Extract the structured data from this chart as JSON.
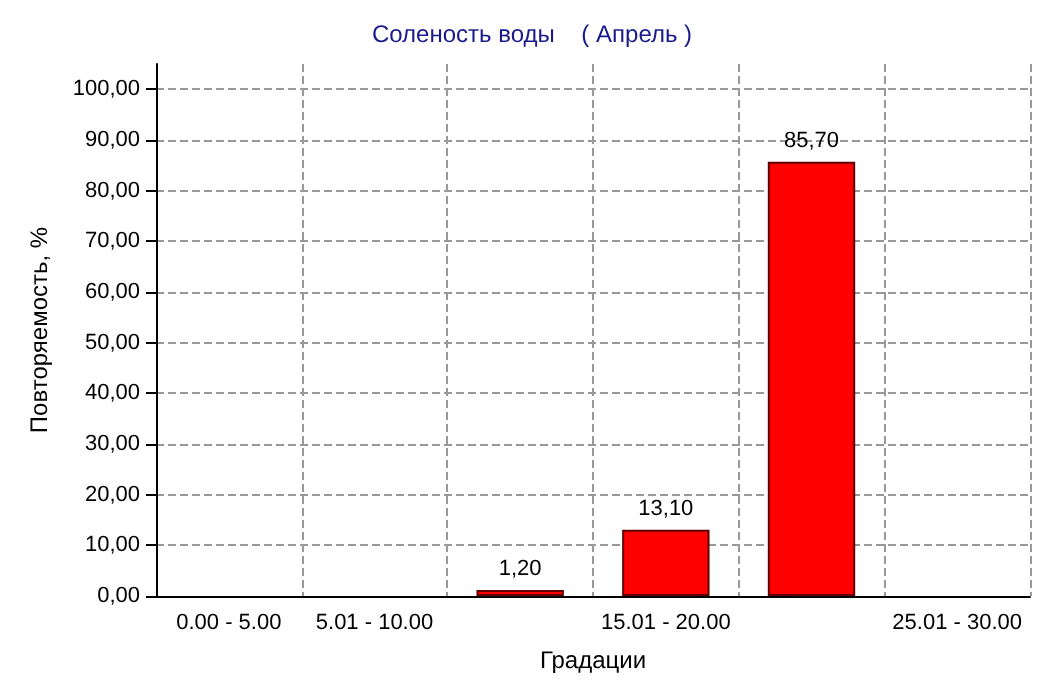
{
  "chart_data": {
    "type": "bar",
    "title": "Соленость воды    ( Апрель )",
    "xlabel": "Градации",
    "ylabel": "Повторяемость, %",
    "categories": [
      "0.00 - 5.00",
      "5.01 - 10.00",
      null,
      "15.01 - 20.00",
      null,
      "25.01 - 30.00"
    ],
    "values": [
      0,
      0,
      1.2,
      13.1,
      85.7,
      0
    ],
    "value_labels": [
      null,
      null,
      "1,20",
      "13,10",
      "85,70",
      null
    ],
    "color": "#ff0000",
    "ylim": [
      0,
      105
    ],
    "yticks": [
      {
        "value": 0,
        "label": "0,00"
      },
      {
        "value": 10,
        "label": "10,00"
      },
      {
        "value": 20,
        "label": "20,00"
      },
      {
        "value": 30,
        "label": "30,00"
      },
      {
        "value": 40,
        "label": "40,00"
      },
      {
        "value": 50,
        "label": "50,00"
      },
      {
        "value": 60,
        "label": "60,00"
      },
      {
        "value": 70,
        "label": "70,00"
      },
      {
        "value": 80,
        "label": "80,00"
      },
      {
        "value": 90,
        "label": "90,00"
      },
      {
        "value": 100,
        "label": "100,00"
      }
    ],
    "grid": true
  }
}
